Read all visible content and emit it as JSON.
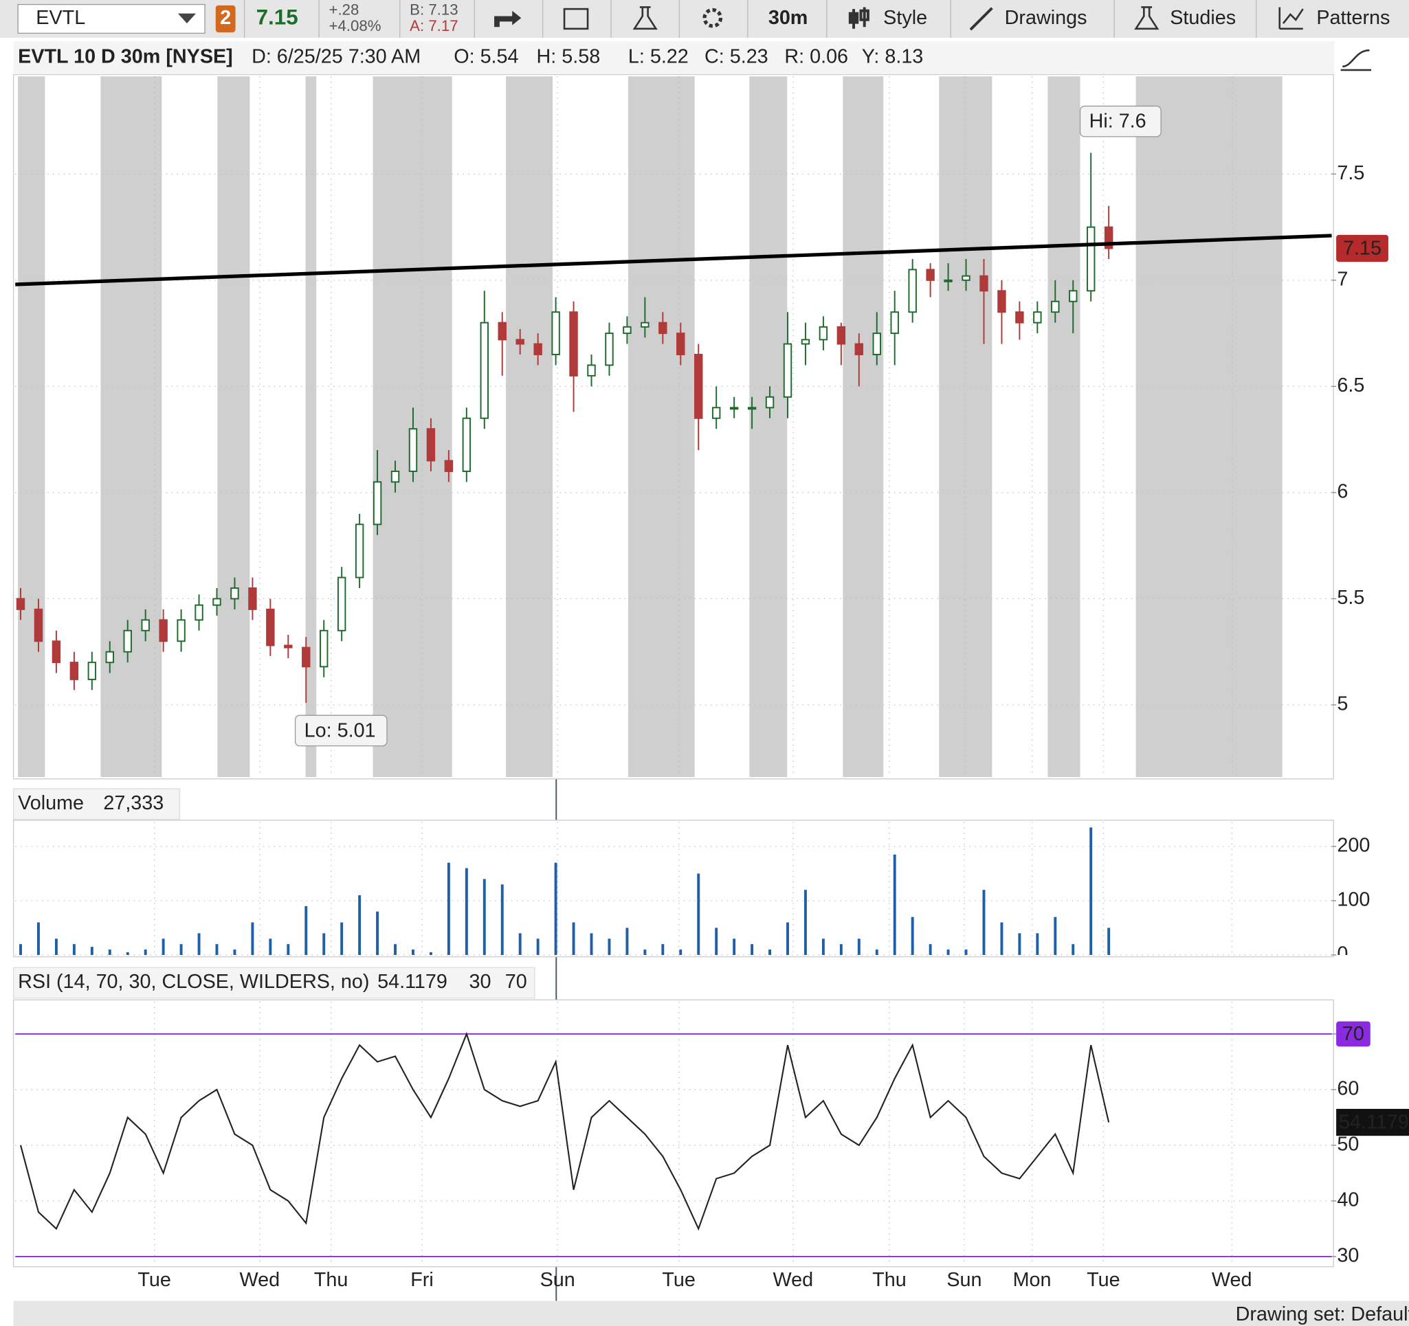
{
  "toolbar": {
    "symbol": "EVTL",
    "link": "2",
    "last": "7.15",
    "change": "+.28",
    "change_pct": "+4.08%",
    "bid": "B: 7.13",
    "ask": "A: 7.17",
    "timeframe": "30m",
    "buttons": [
      "Style",
      "Drawings",
      "Studies",
      "Patterns"
    ]
  },
  "header": {
    "title": "EVTL 10 D 30m [NYSE]",
    "fields": [
      "D: 6/25/25 7:30 AM",
      "O: 5.54",
      "H: 5.58",
      "L: 5.22",
      "C: 5.23",
      "R: 0.06",
      "Y: 8.13"
    ]
  },
  "footer": {
    "drawing_set": "Drawing set: Default"
  },
  "chart_data": [
    {
      "type": "candlestick",
      "xlim": [
        -0.3,
        73.5
      ],
      "xticks": [
        {
          "value": 7.5,
          "label": "Tue"
        },
        {
          "value": 13.4,
          "label": "Wed"
        },
        {
          "value": 17.4,
          "label": "Thu"
        },
        {
          "value": 22.5,
          "label": "Fri"
        },
        {
          "value": 30.1,
          "label": "Sun"
        },
        {
          "value": 36.9,
          "label": "Tue"
        },
        {
          "value": 43.3,
          "label": "Wed"
        },
        {
          "value": 48.7,
          "label": "Thu"
        },
        {
          "value": 52.9,
          "label": "Sun"
        },
        {
          "value": 56.7,
          "label": "Mon"
        },
        {
          "value": 60.7,
          "label": "Tue"
        },
        {
          "value": 67.9,
          "label": "Wed"
        }
      ],
      "ylim": [
        4.66,
        7.96
      ],
      "yticks": [
        5,
        5.5,
        6,
        6.5,
        7,
        7.5
      ],
      "grid": true,
      "up_color": "#1f6b2e",
      "down_color": "#b03a3a",
      "open": [
        5.5,
        5.45,
        5.3,
        5.2,
        5.12,
        5.2,
        5.25,
        5.35,
        5.4,
        5.3,
        5.4,
        5.47,
        5.5,
        5.55,
        5.45,
        5.28,
        5.27,
        5.18,
        5.35,
        5.6,
        5.85,
        6.05,
        6.1,
        6.3,
        6.15,
        6.1,
        6.35,
        6.8,
        6.72,
        6.7,
        6.65,
        6.85,
        6.55,
        6.6,
        6.75,
        6.78,
        6.8,
        6.75,
        6.65,
        6.35,
        6.4,
        6.4,
        6.4,
        6.45,
        6.7,
        6.72,
        6.78,
        6.7,
        6.65,
        6.75,
        6.85,
        7.05,
        7.0,
        7.0,
        7.02,
        6.95,
        6.85,
        6.8,
        6.85,
        6.9,
        6.95,
        7.25
      ],
      "high": [
        5.55,
        5.5,
        5.35,
        5.25,
        5.25,
        5.3,
        5.4,
        5.45,
        5.45,
        5.45,
        5.52,
        5.55,
        5.6,
        5.6,
        5.5,
        5.33,
        5.32,
        5.4,
        5.65,
        5.9,
        6.2,
        6.15,
        6.4,
        6.35,
        6.2,
        6.4,
        6.95,
        6.85,
        6.77,
        6.75,
        6.92,
        6.9,
        6.65,
        6.8,
        6.83,
        6.92,
        6.85,
        6.8,
        6.7,
        6.5,
        6.45,
        6.45,
        6.5,
        6.85,
        6.8,
        6.83,
        6.8,
        6.75,
        6.85,
        6.95,
        7.1,
        7.08,
        7.08,
        7.1,
        7.1,
        7.0,
        6.9,
        6.9,
        7.0,
        7.0,
        7.6,
        7.35
      ],
      "low": [
        5.4,
        5.25,
        5.15,
        5.07,
        5.07,
        5.15,
        5.2,
        5.3,
        5.25,
        5.25,
        5.35,
        5.42,
        5.45,
        5.4,
        5.23,
        5.22,
        5.01,
        5.13,
        5.3,
        5.55,
        5.8,
        6.0,
        6.05,
        6.1,
        6.05,
        6.05,
        6.3,
        6.55,
        6.65,
        6.6,
        6.6,
        6.38,
        6.5,
        6.55,
        6.7,
        6.73,
        6.7,
        6.6,
        6.2,
        6.3,
        6.35,
        6.3,
        6.35,
        6.35,
        6.6,
        6.67,
        6.6,
        6.5,
        6.6,
        6.6,
        6.8,
        6.92,
        6.95,
        6.95,
        6.7,
        6.7,
        6.72,
        6.75,
        6.8,
        6.75,
        6.9,
        7.1
      ],
      "close": [
        5.45,
        5.3,
        5.2,
        5.12,
        5.2,
        5.25,
        5.35,
        5.4,
        5.3,
        5.4,
        5.47,
        5.5,
        5.55,
        5.45,
        5.28,
        5.27,
        5.18,
        5.35,
        5.6,
        5.85,
        6.05,
        6.1,
        6.3,
        6.15,
        6.1,
        6.35,
        6.8,
        6.72,
        6.7,
        6.65,
        6.85,
        6.55,
        6.6,
        6.75,
        6.78,
        6.8,
        6.75,
        6.65,
        6.35,
        6.4,
        6.4,
        6.4,
        6.45,
        6.7,
        6.72,
        6.78,
        6.7,
        6.65,
        6.75,
        6.85,
        7.05,
        7.0,
        7.0,
        7.02,
        6.95,
        6.85,
        6.8,
        6.85,
        6.9,
        6.95,
        7.25,
        7.15
      ],
      "last_price": 7.15,
      "last_color": "#b52b2b",
      "annotations": [
        {
          "text": "Hi: 7.6",
          "value": 7.6,
          "x": 60
        },
        {
          "text": "Lo: 5.01",
          "value": 5.01,
          "x": 16
        }
      ],
      "trendline": {
        "x": [
          -0.3,
          73.5
        ],
        "y": [
          6.98,
          7.21
        ],
        "color": "#000000"
      }
    },
    {
      "type": "bar",
      "title": "Volume",
      "subtitle": "27,333",
      "ylim": [
        0,
        245
      ],
      "yticks": [
        0,
        100,
        200
      ],
      "grid": true,
      "color": "#1f5fa8",
      "values": [
        20,
        60,
        30,
        20,
        15,
        10,
        5,
        10,
        30,
        20,
        40,
        20,
        10,
        60,
        30,
        20,
        90,
        40,
        60,
        110,
        80,
        20,
        10,
        5,
        170,
        160,
        140,
        130,
        40,
        30,
        170,
        60,
        40,
        30,
        50,
        10,
        20,
        10,
        150,
        50,
        30,
        20,
        10,
        60,
        120,
        30,
        20,
        30,
        10,
        185,
        70,
        20,
        10,
        10,
        120,
        60,
        40,
        40,
        70,
        20,
        235,
        50
      ]
    },
    {
      "type": "line",
      "title": "RSI (14, 70, 30, CLOSE, WILDERS, no)",
      "subtitle": "54.1179",
      "levels": [
        30,
        70
      ],
      "level_color": "#8a2be2",
      "ylim": [
        28.5,
        75.8
      ],
      "yticks": [
        30,
        40,
        50,
        60,
        70
      ],
      "grid": true,
      "color": "#222222",
      "values": [
        50,
        38,
        35,
        42,
        38,
        45,
        55,
        52,
        45,
        55,
        58,
        60,
        52,
        50,
        42,
        40,
        36,
        55,
        62,
        68,
        65,
        66,
        60,
        55,
        62,
        70,
        60,
        58,
        57,
        58,
        65,
        42,
        55,
        58,
        55,
        52,
        48,
        42,
        35,
        44,
        45,
        48,
        50,
        68,
        55,
        58,
        52,
        50,
        55,
        62,
        68,
        55,
        58,
        55,
        48,
        45,
        44,
        48,
        52,
        45,
        68,
        54.1179
      ]
    }
  ]
}
